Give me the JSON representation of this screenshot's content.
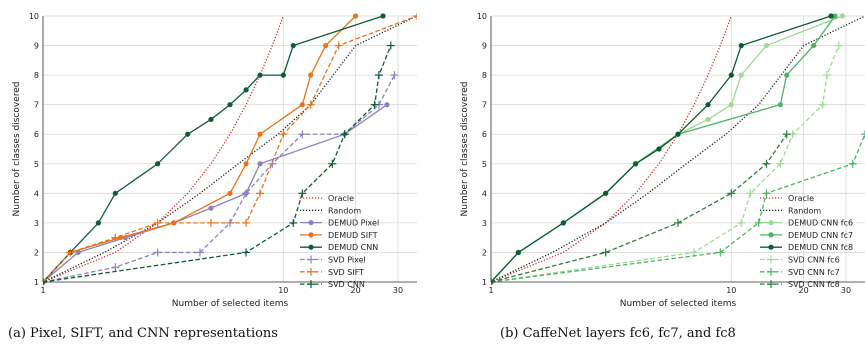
{
  "captions": [
    "(a) Pixel, SIFT, and CNN representations",
    "(b) CaffeNet layers fc6, fc7, and fc8"
  ],
  "chart_data": [
    {
      "type": "line",
      "title": "",
      "xlabel": "Number of selected items",
      "ylabel": "Number of classes discovered",
      "xscale": "log",
      "xlim": [
        1,
        36
      ],
      "ylim": [
        1,
        10
      ],
      "xticks": [
        1,
        10,
        20,
        30
      ],
      "yticks": [
        1,
        2,
        3,
        4,
        5,
        6,
        7,
        8,
        9,
        10
      ],
      "grid": true,
      "legend": "lower-right",
      "series": [
        {
          "name": "Oracle",
          "color": "#d62728",
          "style": "dotted",
          "marker": "none",
          "x": [
            1,
            2,
            3,
            4,
            5,
            6,
            7,
            8,
            9,
            10
          ],
          "y": [
            1,
            2,
            3,
            4,
            5,
            6,
            7,
            8,
            9,
            10
          ]
        },
        {
          "name": "Random",
          "color": "#222222",
          "style": "dotted",
          "marker": "none",
          "x": [
            1,
            1.8,
            3,
            4.5,
            6.5,
            9.5,
            13,
            20,
            36
          ],
          "y": [
            1,
            2,
            3,
            4,
            5,
            6,
            7,
            9,
            10
          ]
        },
        {
          "name": "DEMUD Pixel",
          "color": "#8c82c0",
          "style": "solid",
          "marker": "circle",
          "x": [
            1,
            1.4,
            2.2,
            3.5,
            5,
            7,
            8,
            18,
            27
          ],
          "y": [
            1,
            2,
            2.5,
            3,
            3.5,
            4,
            5,
            6,
            7
          ]
        },
        {
          "name": "DEMUD SIFT",
          "color": "#e8731c",
          "style": "solid",
          "marker": "circle",
          "x": [
            1,
            1.3,
            2.1,
            3.5,
            6,
            7,
            8,
            12,
            13,
            15,
            20
          ],
          "y": [
            1,
            2,
            2.5,
            3,
            4,
            5,
            6,
            7,
            8,
            9,
            10
          ]
        },
        {
          "name": "DEMUD CNN",
          "color": "#0d5c34",
          "style": "solid",
          "marker": "circle",
          "x": [
            1,
            1.3,
            1.7,
            2,
            3,
            4,
            5,
            6,
            7,
            8,
            10,
            11,
            26
          ],
          "y": [
            1,
            2,
            3,
            4,
            5,
            6,
            6.5,
            7,
            7.5,
            8,
            8,
            9,
            10
          ]
        },
        {
          "name": "SVD Pixel",
          "color": "#8c82c0",
          "style": "dashed",
          "marker": "plus",
          "x": [
            1,
            2,
            3,
            4.5,
            6,
            7,
            9,
            12,
            18,
            25,
            29
          ],
          "y": [
            1,
            1.5,
            2,
            2,
            3,
            4,
            5,
            6,
            6,
            7,
            8
          ]
        },
        {
          "name": "SVD SIFT",
          "color": "#e8731c",
          "style": "dashed",
          "marker": "plus",
          "x": [
            1,
            1.3,
            2,
            3,
            5,
            7,
            8,
            10,
            13,
            17,
            36
          ],
          "y": [
            1,
            2,
            2.5,
            3,
            3,
            3,
            4,
            6,
            7,
            9,
            10
          ]
        },
        {
          "name": "SVD CNN",
          "color": "#0d5c34",
          "style": "dashed",
          "marker": "plus",
          "x": [
            1,
            7,
            11,
            12,
            16,
            18,
            24,
            25,
            28
          ],
          "y": [
            1,
            2,
            3,
            4,
            5,
            6,
            7,
            8,
            9
          ]
        }
      ]
    },
    {
      "type": "line",
      "title": "",
      "xlabel": "Number of selected items",
      "ylabel": "Number of classes discovered",
      "xscale": "log",
      "xlim": [
        1,
        36
      ],
      "ylim": [
        1,
        10
      ],
      "xticks": [
        1,
        10,
        20,
        30
      ],
      "yticks": [
        1,
        2,
        3,
        4,
        5,
        6,
        7,
        8,
        9,
        10
      ],
      "grid": true,
      "legend": "lower-right",
      "series": [
        {
          "name": "Oracle",
          "color": "#d62728",
          "style": "dotted",
          "marker": "none",
          "x": [
            1,
            2,
            3,
            4,
            5,
            6,
            7,
            8,
            9,
            10
          ],
          "y": [
            1,
            2,
            3,
            4,
            5,
            6,
            7,
            8,
            9,
            10
          ]
        },
        {
          "name": "Random",
          "color": "#222222",
          "style": "dotted",
          "marker": "none",
          "x": [
            1,
            1.8,
            3,
            4.5,
            6.5,
            9.5,
            13,
            20,
            36
          ],
          "y": [
            1,
            2,
            3,
            4,
            5,
            6,
            7,
            9,
            10
          ]
        },
        {
          "name": "DEMUD CNN fc6",
          "color": "#9edb92",
          "style": "solid",
          "marker": "circle",
          "x": [
            1,
            1.3,
            2,
            3,
            4,
            5,
            6,
            8,
            10,
            11,
            14,
            29
          ],
          "y": [
            1,
            2,
            3,
            4,
            5,
            5.5,
            6,
            6.5,
            7,
            8,
            9,
            10
          ]
        },
        {
          "name": "DEMUD CNN fc7",
          "color": "#4cb564",
          "style": "solid",
          "marker": "circle",
          "x": [
            1,
            1.3,
            2,
            3,
            4,
            6,
            16,
            17,
            22,
            27
          ],
          "y": [
            1,
            2,
            3,
            4,
            5,
            6,
            7,
            8,
            9,
            10
          ]
        },
        {
          "name": "DEMUD CNN fc8",
          "color": "#0d5c34",
          "style": "solid",
          "marker": "circle",
          "x": [
            1,
            1.3,
            2,
            3,
            4,
            5,
            6,
            8,
            10,
            11,
            26
          ],
          "y": [
            1,
            2,
            3,
            4,
            5,
            5.5,
            6,
            7,
            8,
            9,
            10
          ]
        },
        {
          "name": "SVD CNN fc6",
          "color": "#9edb92",
          "style": "dashed",
          "marker": "plus",
          "x": [
            1,
            7,
            11,
            12,
            16,
            18,
            24,
            25,
            28
          ],
          "y": [
            1,
            2,
            3,
            4,
            5,
            6,
            7,
            8,
            9
          ]
        },
        {
          "name": "SVD CNN fc7",
          "color": "#4cb564",
          "style": "dashed",
          "marker": "plus",
          "x": [
            1,
            9,
            13,
            14,
            32,
            36
          ],
          "y": [
            1,
            2,
            3,
            4,
            5,
            6
          ]
        },
        {
          "name": "SVD CNN fc8",
          "color": "#2d7a3e",
          "style": "dashed",
          "marker": "plus",
          "x": [
            1,
            3,
            6,
            10,
            14,
            17
          ],
          "y": [
            1,
            2,
            3,
            4,
            5,
            6
          ]
        }
      ]
    }
  ]
}
